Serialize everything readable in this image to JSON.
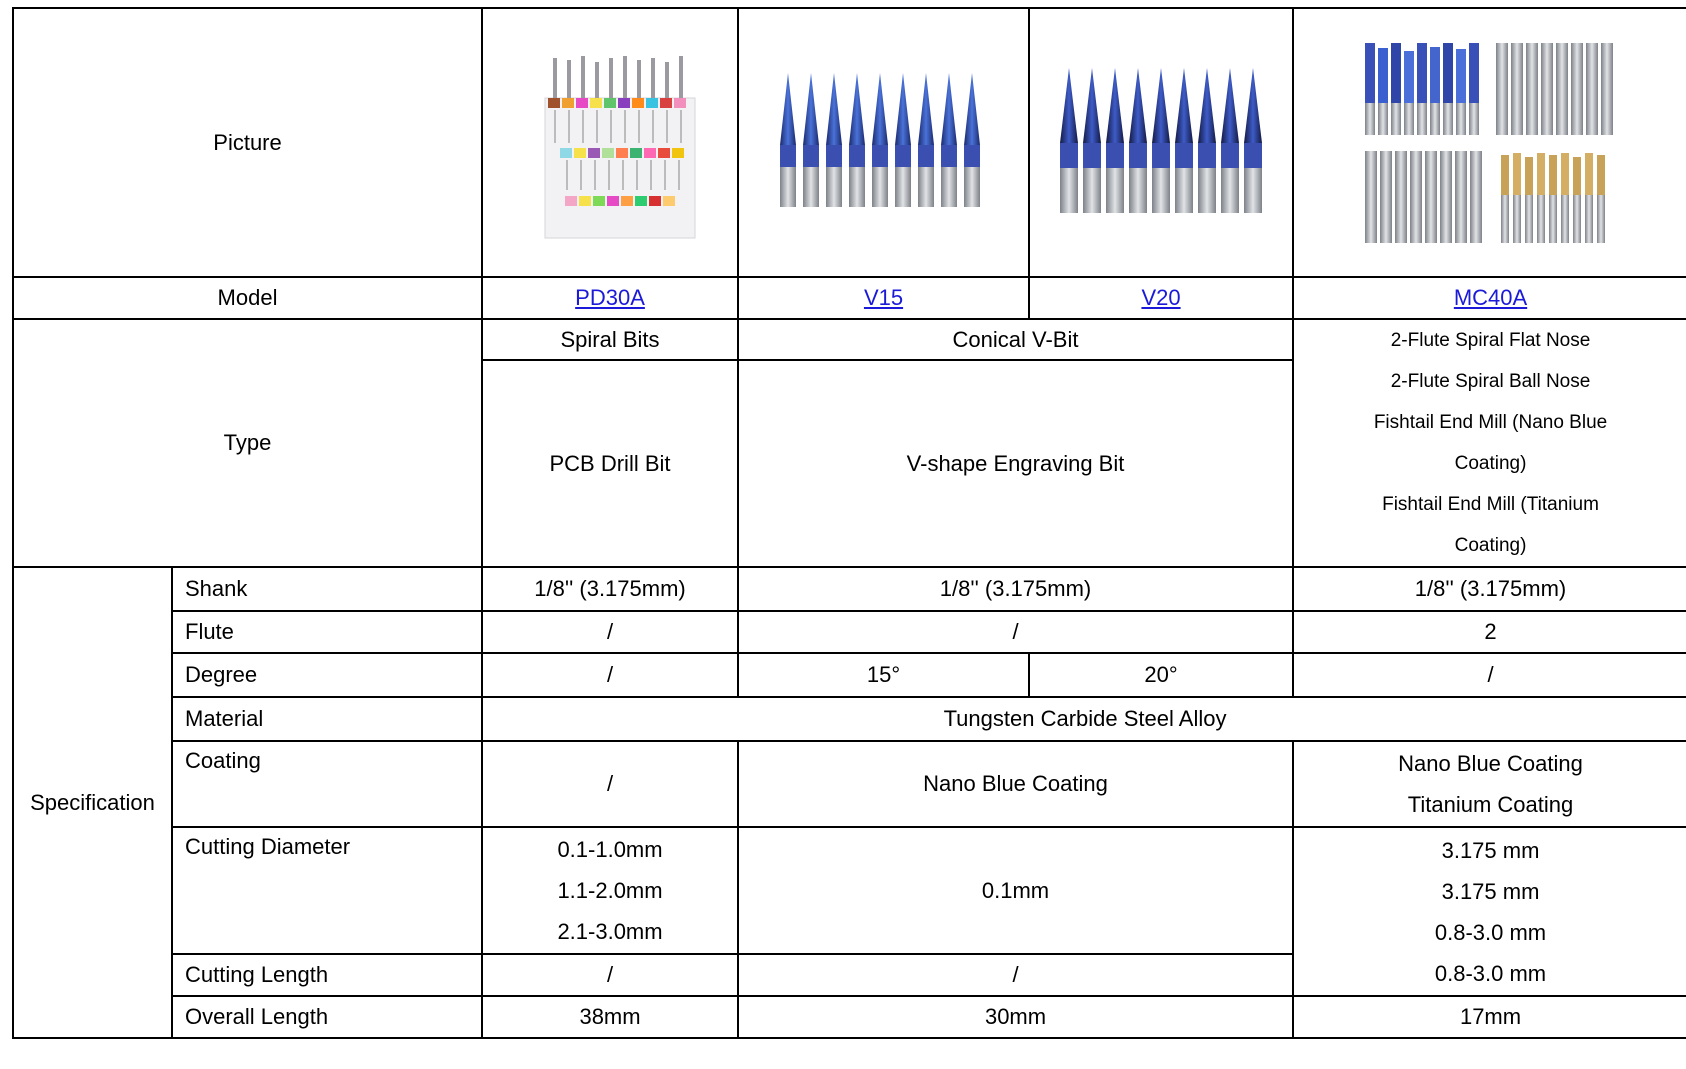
{
  "row_labels": {
    "picture": "Picture",
    "model": "Model",
    "type": "Type",
    "specification": "Specification",
    "shank": "Shank",
    "flute": "Flute",
    "degree": "Degree",
    "material": "Material",
    "coating": "Coating",
    "cutting_diameter": "Cutting Diameter",
    "cutting_length": "Cutting Length",
    "overall_length": "Overall Length"
  },
  "models": [
    "PD30A",
    "V15",
    "V20",
    "MC40A"
  ],
  "type": {
    "pd30a_top": "Spiral Bits",
    "pd30a_main": "PCB Drill Bit",
    "v_top": "Conical V-Bit",
    "v_main": "V-shape Engraving Bit",
    "mc40a": [
      "2-Flute Spiral Flat Nose",
      "2-Flute Spiral Ball Nose",
      "Fishtail End Mill (Nano Blue",
      "Coating)",
      "Fishtail End Mill (Titanium",
      "Coating)"
    ]
  },
  "shank": {
    "pd30a": "1/8'' (3.175mm)",
    "v": "1/8'' (3.175mm)",
    "mc40a": "1/8'' (3.175mm)"
  },
  "flute": {
    "pd30a": "/",
    "v": "/",
    "mc40a": "2"
  },
  "degree": {
    "pd30a": "/",
    "v15": "15°",
    "v20": "20°",
    "mc40a": "/"
  },
  "material": "Tungsten Carbide Steel Alloy",
  "coating": {
    "pd30a": "/",
    "v": "Nano Blue Coating",
    "mc40a": [
      "Nano Blue Coating",
      "Titanium Coating"
    ]
  },
  "cutting_diameter": {
    "pd30a": [
      "0.1-1.0mm",
      "1.1-2.0mm",
      "2.1-3.0mm"
    ],
    "v": "0.1mm",
    "mc40a": [
      "3.175 mm",
      "3.175 mm",
      "0.8-3.0 mm",
      "0.8-3.0 mm"
    ]
  },
  "cutting_length": {
    "pd30a": "/",
    "v": "/"
  },
  "overall_length": {
    "pd30a": "38mm",
    "v": "30mm",
    "mc40a": "17mm"
  },
  "colors": {
    "link": "#1a1ad8",
    "nano_blue": "#2e3f9e",
    "titanium": "#c9a25a",
    "steel": "#b8bcc2"
  }
}
